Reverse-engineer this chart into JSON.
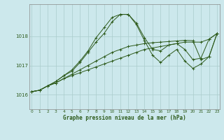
{
  "title": "Graphe pression niveau de la mer (hPa)",
  "background_color": "#cce8ec",
  "grid_color": "#aacccc",
  "line_color": "#2d5a1b",
  "x_labels": [
    "0",
    "1",
    "2",
    "3",
    "4",
    "5",
    "6",
    "7",
    "8",
    "9",
    "10",
    "11",
    "12",
    "13",
    "14",
    "15",
    "16",
    "17",
    "18",
    "19",
    "20",
    "21",
    "22",
    "23"
  ],
  "yticks": [
    1016,
    1017,
    1018
  ],
  "ylim": [
    1015.5,
    1019.1
  ],
  "xlim": [
    -0.3,
    23.3
  ],
  "figsize": [
    3.2,
    2.0
  ],
  "series": [
    [
      1016.1,
      1016.15,
      1016.3,
      1016.4,
      1016.55,
      1016.65,
      1016.75,
      1016.85,
      1016.95,
      1017.05,
      1017.15,
      1017.25,
      1017.35,
      1017.45,
      1017.55,
      1017.6,
      1017.65,
      1017.7,
      1017.75,
      1017.8,
      1017.8,
      1017.8,
      1017.9,
      1018.1
    ],
    [
      1016.1,
      1016.15,
      1016.3,
      1016.4,
      1016.55,
      1016.7,
      1016.85,
      1017.0,
      1017.15,
      1017.3,
      1017.45,
      1017.55,
      1017.65,
      1017.7,
      1017.75,
      1017.78,
      1017.8,
      1017.82,
      1017.84,
      1017.86,
      1017.85,
      1017.2,
      1017.3,
      1018.1
    ],
    [
      1016.1,
      1016.15,
      1016.3,
      1016.45,
      1016.65,
      1016.85,
      1017.15,
      1017.5,
      1017.95,
      1018.3,
      1018.65,
      1018.75,
      1018.75,
      1018.45,
      1017.95,
      1017.55,
      1017.5,
      1017.7,
      1017.75,
      1017.55,
      1017.2,
      1017.25,
      1017.9,
      1018.1
    ],
    [
      1016.1,
      1016.15,
      1016.3,
      1016.45,
      1016.65,
      1016.8,
      1017.1,
      1017.45,
      1017.8,
      1018.1,
      1018.5,
      1018.75,
      1018.75,
      1018.4,
      1017.85,
      1017.35,
      1017.1,
      1017.35,
      1017.55,
      1017.15,
      1016.9,
      1017.05,
      1017.3,
      1018.1
    ]
  ]
}
